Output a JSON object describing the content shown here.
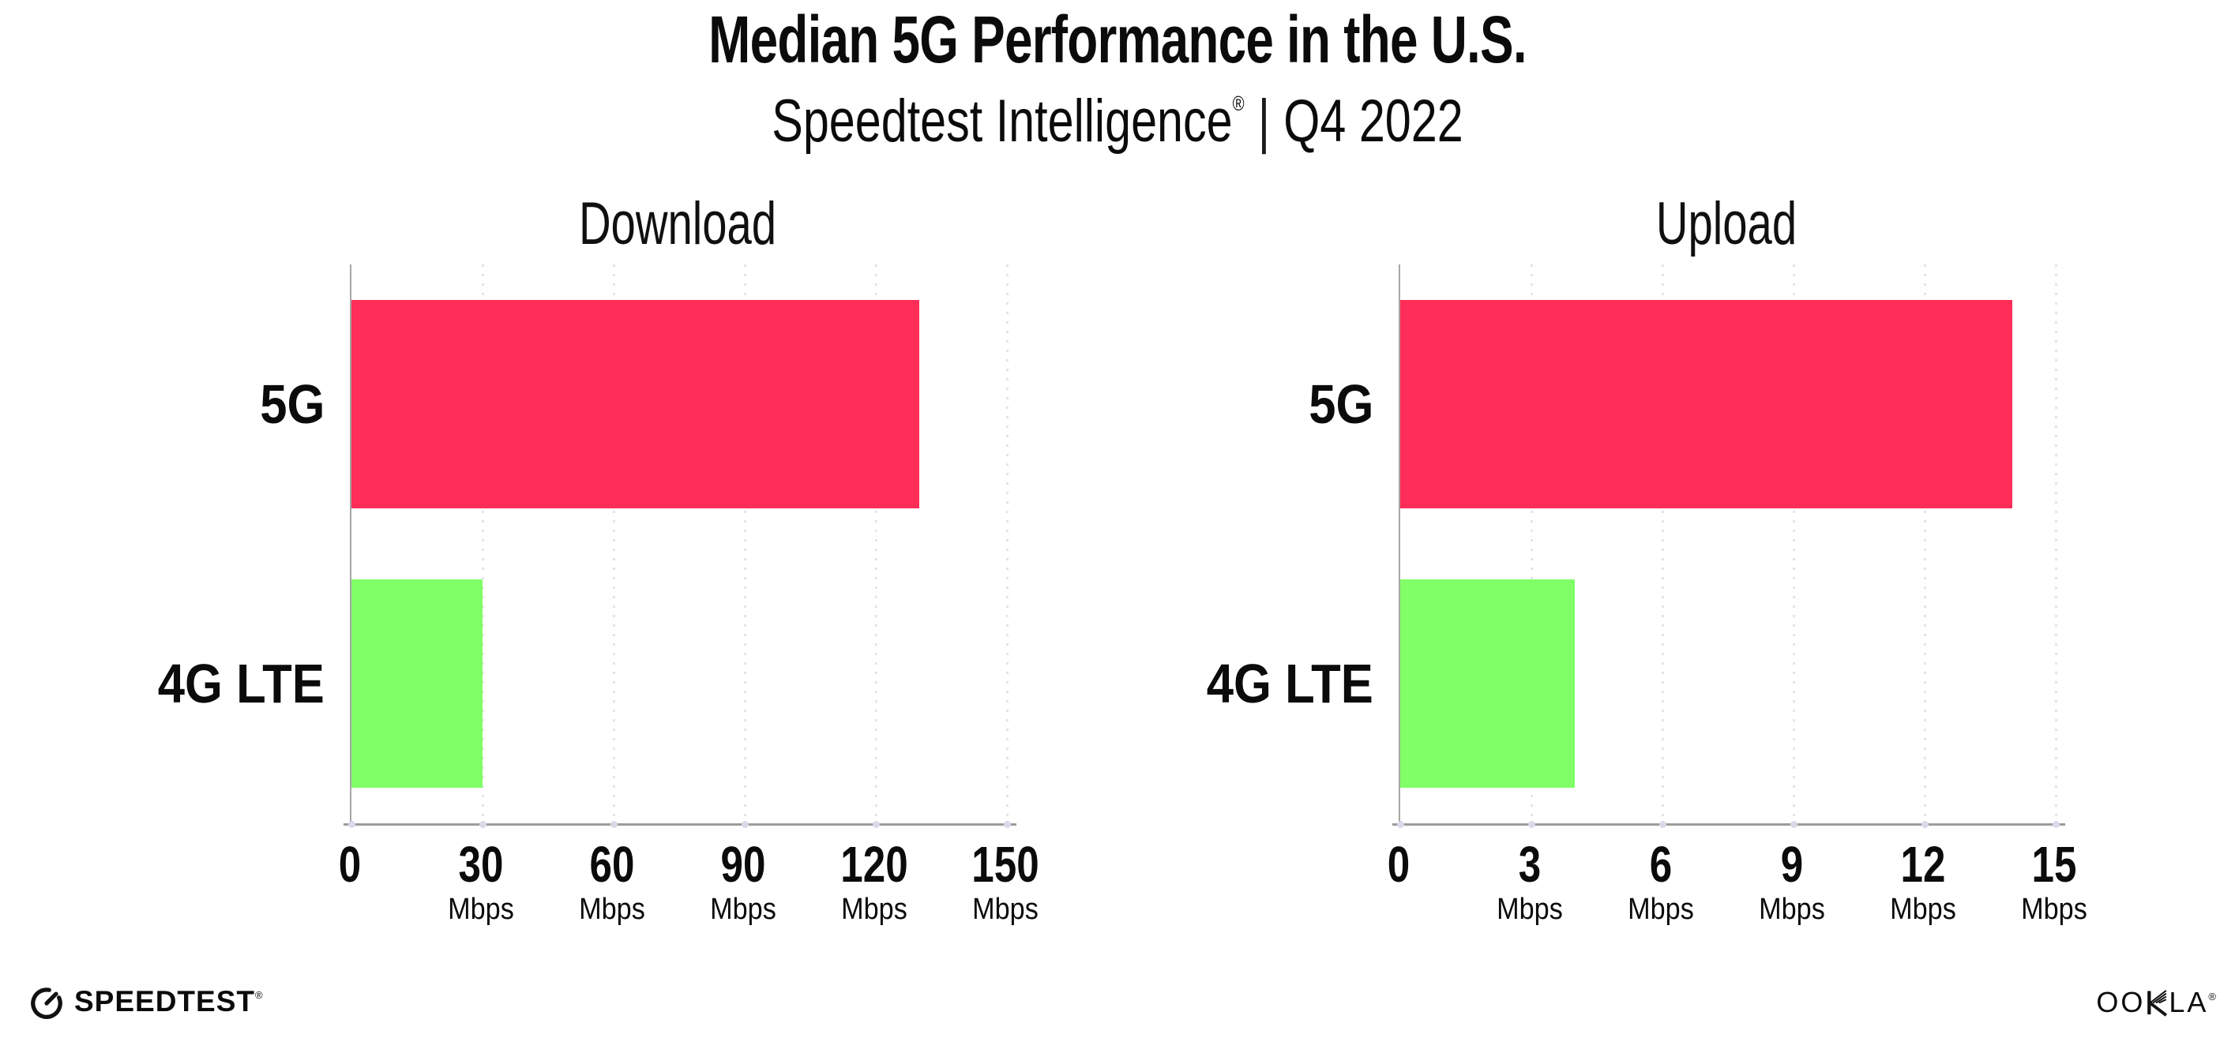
{
  "header": {
    "title": "Median 5G Performance in the U.S.",
    "subtitle_brand": "Speedtest Intelligence",
    "registered_mark": "®",
    "subtitle_separator": "|",
    "subtitle_period": "Q4 2022"
  },
  "chart_data": [
    {
      "type": "bar",
      "orientation": "horizontal",
      "title": "Download",
      "categories": [
        "5G",
        "4G LTE"
      ],
      "values": [
        130,
        30
      ],
      "unit": "Mbps",
      "xlim": [
        0,
        150
      ],
      "xticks": [
        0,
        30,
        60,
        90,
        120,
        150
      ],
      "bar_colors": [
        "#FF2D58",
        "#80FF66"
      ],
      "grid": "dotted-vertical",
      "legend": "none"
    },
    {
      "type": "bar",
      "orientation": "horizontal",
      "title": "Upload",
      "categories": [
        "5G",
        "4G LTE"
      ],
      "values": [
        14,
        4
      ],
      "unit": "Mbps",
      "xlim": [
        0,
        15
      ],
      "xticks": [
        0,
        3,
        6,
        9,
        12,
        15
      ],
      "bar_colors": [
        "#FF2D58",
        "#80FF66"
      ],
      "grid": "dotted-vertical",
      "legend": "none"
    }
  ],
  "footer": {
    "speedtest_label": "SPEEDTEST",
    "speedtest_mark": "®",
    "ookla_prefix": "OO",
    "ookla_suffix": "LA",
    "ookla_mark": "®"
  },
  "colors": {
    "bar_5g": "#FF2D58",
    "bar_4g_lte": "#80FF66",
    "gridline": "#E3E3EF",
    "axis": "#9C9C9C",
    "text": "#0B0B0B",
    "background": "#FFFFFF"
  }
}
